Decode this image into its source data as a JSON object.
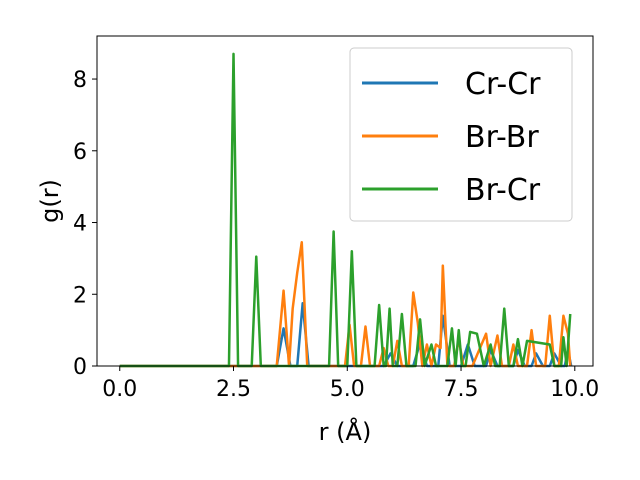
{
  "chart_data": {
    "type": "line",
    "title": "",
    "xlabel": "r (Å)",
    "ylabel": "g(r)",
    "xlim": [
      -0.5,
      10.4
    ],
    "ylim": [
      0,
      9.2
    ],
    "xticks": [
      0.0,
      2.5,
      5.0,
      7.5,
      10.0
    ],
    "xtick_labels": [
      "0.0",
      "2.5",
      "5.0",
      "7.5",
      "10.0"
    ],
    "yticks": [
      0,
      2,
      4,
      6,
      8
    ],
    "ytick_labels": [
      "0",
      "2",
      "4",
      "6",
      "8"
    ],
    "grid": false,
    "legend_position": "top-right",
    "series": [
      {
        "name": "Cr-Cr",
        "color": "#1f77b4",
        "points": [
          [
            0,
            0
          ],
          [
            3.45,
            0
          ],
          [
            3.6,
            1.05
          ],
          [
            3.75,
            0
          ],
          [
            3.9,
            0
          ],
          [
            4.02,
            1.75
          ],
          [
            4.15,
            0
          ],
          [
            5.8,
            0
          ],
          [
            5.95,
            0.35
          ],
          [
            6.1,
            0
          ],
          [
            6.45,
            0
          ],
          [
            6.6,
            0.65
          ],
          [
            6.75,
            0
          ],
          [
            7.0,
            0
          ],
          [
            7.1,
            1.4
          ],
          [
            7.25,
            0
          ],
          [
            7.5,
            0
          ],
          [
            7.65,
            0.6
          ],
          [
            7.8,
            0
          ],
          [
            8.05,
            0
          ],
          [
            8.15,
            0.45
          ],
          [
            8.3,
            0
          ],
          [
            8.65,
            0
          ],
          [
            8.75,
            0.45
          ],
          [
            8.9,
            0
          ],
          [
            9.05,
            0
          ],
          [
            9.15,
            0.35
          ],
          [
            9.3,
            0
          ],
          [
            9.45,
            0
          ],
          [
            9.55,
            0.35
          ],
          [
            9.7,
            0
          ],
          [
            9.78,
            0
          ],
          [
            9.85,
            0.45
          ],
          [
            9.92,
            0
          ]
        ]
      },
      {
        "name": "Br-Br",
        "color": "#ff7f0e",
        "points": [
          [
            0,
            0
          ],
          [
            3.45,
            0
          ],
          [
            3.6,
            2.1
          ],
          [
            3.72,
            0
          ],
          [
            3.8,
            1.6
          ],
          [
            3.9,
            2.6
          ],
          [
            4.0,
            3.45
          ],
          [
            4.12,
            0
          ],
          [
            4.95,
            0
          ],
          [
            5.05,
            1.15
          ],
          [
            5.15,
            0
          ],
          [
            5.3,
            0
          ],
          [
            5.4,
            1.1
          ],
          [
            5.5,
            0
          ],
          [
            5.7,
            0
          ],
          [
            5.8,
            0.5
          ],
          [
            5.9,
            0
          ],
          [
            6.0,
            0
          ],
          [
            6.1,
            0.7
          ],
          [
            6.2,
            0
          ],
          [
            6.35,
            0
          ],
          [
            6.45,
            2.05
          ],
          [
            6.55,
            1.2
          ],
          [
            6.65,
            0
          ],
          [
            6.75,
            0.6
          ],
          [
            6.85,
            0
          ],
          [
            6.95,
            0.6
          ],
          [
            7.05,
            0.5
          ],
          [
            7.1,
            2.8
          ],
          [
            7.2,
            0
          ],
          [
            7.35,
            0
          ],
          [
            7.45,
            0.75
          ],
          [
            7.55,
            0
          ],
          [
            7.75,
            0
          ],
          [
            8.05,
            0.9
          ],
          [
            8.15,
            0
          ],
          [
            8.3,
            0.85
          ],
          [
            8.4,
            0
          ],
          [
            8.55,
            0
          ],
          [
            8.65,
            0.6
          ],
          [
            8.75,
            0
          ],
          [
            8.95,
            0
          ],
          [
            9.05,
            1.0
          ],
          [
            9.15,
            0
          ],
          [
            9.35,
            0
          ],
          [
            9.45,
            1.4
          ],
          [
            9.55,
            0
          ],
          [
            9.65,
            0
          ],
          [
            9.75,
            1.4
          ],
          [
            9.85,
            0.9
          ],
          [
            9.9,
            0
          ]
        ]
      },
      {
        "name": "Br-Cr",
        "color": "#2ca02c",
        "points": [
          [
            0,
            0
          ],
          [
            2.4,
            0
          ],
          [
            2.5,
            8.7
          ],
          [
            2.6,
            0
          ],
          [
            2.9,
            0
          ],
          [
            3.0,
            3.05
          ],
          [
            3.1,
            0
          ],
          [
            4.6,
            0
          ],
          [
            4.7,
            3.75
          ],
          [
            4.8,
            0
          ],
          [
            5.0,
            0
          ],
          [
            5.1,
            3.2
          ],
          [
            5.2,
            0
          ],
          [
            5.6,
            0
          ],
          [
            5.7,
            1.7
          ],
          [
            5.8,
            0
          ],
          [
            5.85,
            0
          ],
          [
            5.93,
            1.6
          ],
          [
            6.0,
            0
          ],
          [
            6.1,
            0
          ],
          [
            6.2,
            1.45
          ],
          [
            6.3,
            0
          ],
          [
            6.5,
            0
          ],
          [
            6.6,
            1.3
          ],
          [
            6.7,
            0
          ],
          [
            6.85,
            0.6
          ],
          [
            6.95,
            0
          ],
          [
            7.2,
            0
          ],
          [
            7.3,
            1.05
          ],
          [
            7.38,
            0
          ],
          [
            7.45,
            1.0
          ],
          [
            7.52,
            0
          ],
          [
            7.6,
            0
          ],
          [
            7.7,
            0.95
          ],
          [
            7.85,
            0.9
          ],
          [
            8.0,
            0
          ],
          [
            8.15,
            0.6
          ],
          [
            8.25,
            0
          ],
          [
            8.35,
            0
          ],
          [
            8.45,
            1.6
          ],
          [
            8.55,
            0
          ],
          [
            8.65,
            0
          ],
          [
            8.75,
            0.75
          ],
          [
            8.85,
            0
          ],
          [
            8.95,
            0.7
          ],
          [
            9.45,
            0.6
          ],
          [
            9.55,
            0
          ],
          [
            9.7,
            0
          ],
          [
            9.75,
            0.8
          ],
          [
            9.82,
            0
          ],
          [
            9.9,
            1.45
          ]
        ]
      }
    ]
  }
}
